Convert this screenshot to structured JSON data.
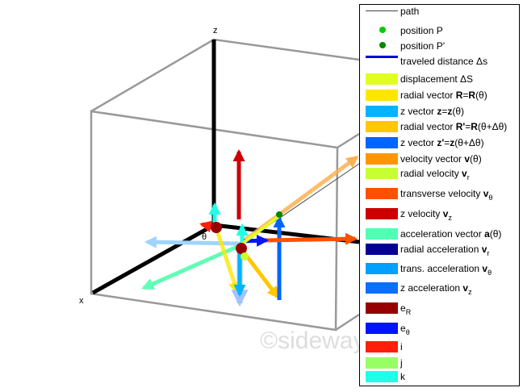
{
  "axes": {
    "x": "x",
    "z": "z",
    "theta": "θ"
  },
  "watermark": "©sideway",
  "legend": [
    {
      "key": "path",
      "kind": "line",
      "color": "#444444",
      "parts": [
        [
          "t",
          "path"
        ]
      ]
    },
    {
      "key": "position-p",
      "kind": "dot",
      "color": "#00cc00",
      "parts": [
        [
          "t",
          "position P"
        ]
      ]
    },
    {
      "key": "position-p-prime",
      "kind": "dot",
      "color": "#008800",
      "parts": [
        [
          "t",
          "position P'"
        ]
      ]
    },
    {
      "key": "traveled-distance",
      "kind": "thick",
      "color": "#0000dd",
      "parts": [
        [
          "t",
          "traveled distance Δs"
        ]
      ]
    },
    {
      "key": "displacement",
      "kind": "box",
      "color": "#e0ff20",
      "parts": [
        [
          "t",
          "displacement ΔS"
        ]
      ]
    },
    {
      "key": "radial-vector",
      "kind": "box",
      "color": "#ffe600",
      "parts": [
        [
          "t",
          "radial vector "
        ],
        [
          "b",
          "R"
        ],
        [
          "t",
          "="
        ],
        [
          "b",
          "R"
        ],
        [
          "t",
          "(θ)"
        ]
      ]
    },
    {
      "key": "z-vector",
      "kind": "box",
      "color": "#00b4ff",
      "parts": [
        [
          "t",
          "z vector "
        ],
        [
          "b",
          "z"
        ],
        [
          "t",
          "="
        ],
        [
          "b",
          "z"
        ],
        [
          "t",
          "(θ)"
        ]
      ]
    },
    {
      "key": "radial-vector-prime",
      "kind": "box",
      "color": "#ffc800",
      "parts": [
        [
          "t",
          "radial vector "
        ],
        [
          "b",
          "R'"
        ],
        [
          "t",
          "="
        ],
        [
          "b",
          "R"
        ],
        [
          "t",
          "(θ+Δθ)"
        ]
      ]
    },
    {
      "key": "z-vector-prime",
      "kind": "box",
      "color": "#0064ff",
      "parts": [
        [
          "t",
          "z vector "
        ],
        [
          "b",
          "z'"
        ],
        [
          "t",
          "="
        ],
        [
          "b",
          "z"
        ],
        [
          "t",
          "(θ+Δθ)"
        ]
      ]
    },
    {
      "key": "velocity-vector",
      "kind": "box",
      "color": "#ff9600",
      "parts": [
        [
          "t",
          "velocity vector "
        ],
        [
          "b",
          "v"
        ],
        [
          "t",
          "(θ)"
        ]
      ]
    },
    {
      "key": "radial-velocity",
      "kind": "box",
      "color": "#c8ff32",
      "parts": [
        [
          "t",
          "radial velocity "
        ],
        [
          "b",
          "v"
        ],
        [
          "s",
          "r"
        ]
      ]
    },
    {
      "key": "transverse-velocity",
      "kind": "box",
      "color": "#ff5000",
      "parts": [
        [
          "t",
          "transverse velocity "
        ],
        [
          "b",
          "v"
        ],
        [
          "s",
          "θ"
        ]
      ]
    },
    {
      "key": "z-velocity",
      "kind": "box",
      "color": "#cc0000",
      "parts": [
        [
          "t",
          "z velocity "
        ],
        [
          "b",
          "v"
        ],
        [
          "s",
          "z"
        ]
      ]
    },
    {
      "key": "acceleration-vector",
      "kind": "box",
      "color": "#50ffb4",
      "parts": [
        [
          "t",
          "acceleration vector "
        ],
        [
          "b",
          "a"
        ],
        [
          "t",
          "(θ)"
        ]
      ]
    },
    {
      "key": "radial-acceleration",
      "kind": "box",
      "color": "#000096",
      "parts": [
        [
          "t",
          "radial acceleration "
        ],
        [
          "b",
          "v"
        ],
        [
          "s",
          "r"
        ]
      ]
    },
    {
      "key": "trans-acceleration",
      "kind": "box",
      "color": "#00a0ff",
      "parts": [
        [
          "t",
          "trans. acceleration "
        ],
        [
          "b",
          "v"
        ],
        [
          "s",
          "θ"
        ]
      ]
    },
    {
      "key": "z-acceleration",
      "kind": "box",
      "color": "#0a6eff",
      "parts": [
        [
          "t",
          "z acceleration "
        ],
        [
          "b",
          "v"
        ],
        [
          "s",
          "z"
        ]
      ]
    },
    {
      "key": "e-r",
      "kind": "box",
      "color": "#960000",
      "parts": [
        [
          "t",
          "e"
        ],
        [
          "s",
          "R"
        ]
      ]
    },
    {
      "key": "e-theta",
      "kind": "box",
      "color": "#0014ff",
      "parts": [
        [
          "t",
          "e"
        ],
        [
          "s",
          "θ"
        ]
      ]
    },
    {
      "key": "i",
      "kind": "box",
      "color": "#ff1e0a",
      "parts": [
        [
          "t",
          "i"
        ]
      ]
    },
    {
      "key": "j",
      "kind": "box",
      "color": "#96ff64",
      "parts": [
        [
          "t",
          "j"
        ]
      ]
    },
    {
      "key": "k",
      "kind": "box",
      "color": "#1effe6",
      "parts": [
        [
          "t",
          "k"
        ]
      ]
    }
  ]
}
